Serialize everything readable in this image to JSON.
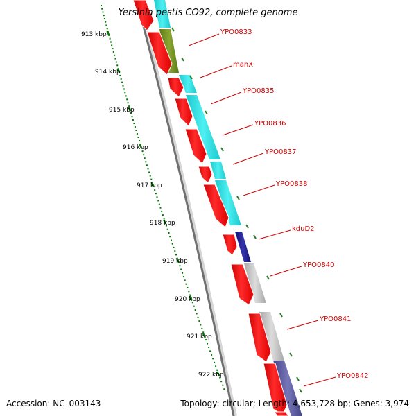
{
  "title": "Yersinia pestis CO92, complete genome",
  "footer": {
    "accession": "Accession: NC_003143",
    "topology": "Topology: circular; Length: 4,653,728 bp; Genes: 3,974"
  },
  "scale_labels": [
    "913 kbp",
    "914 kbp",
    "915 kbp",
    "916 kbp",
    "917 kbp",
    "918 kbp",
    "919 kbp",
    "920 kbp",
    "921 kbp",
    "922 kbp"
  ],
  "gene_labels": [
    "YPO0833",
    "manX",
    "YPO0835",
    "YPO0836",
    "YPO0837",
    "YPO0838",
    "kduD2",
    "YPO0840",
    "YPO0841",
    "YPO0842"
  ],
  "colors": {
    "backbone": "#8c8c8c",
    "cds": "#ff0000",
    "cog_cyan": "#22dde0",
    "cog_olive": "#6e8c1e",
    "cog_navy": "#1e1e8c",
    "cog_gray": "#c0c0c0",
    "cog_slate": "#5a5a98",
    "scale": "#007800",
    "label": "#cc0000"
  }
}
